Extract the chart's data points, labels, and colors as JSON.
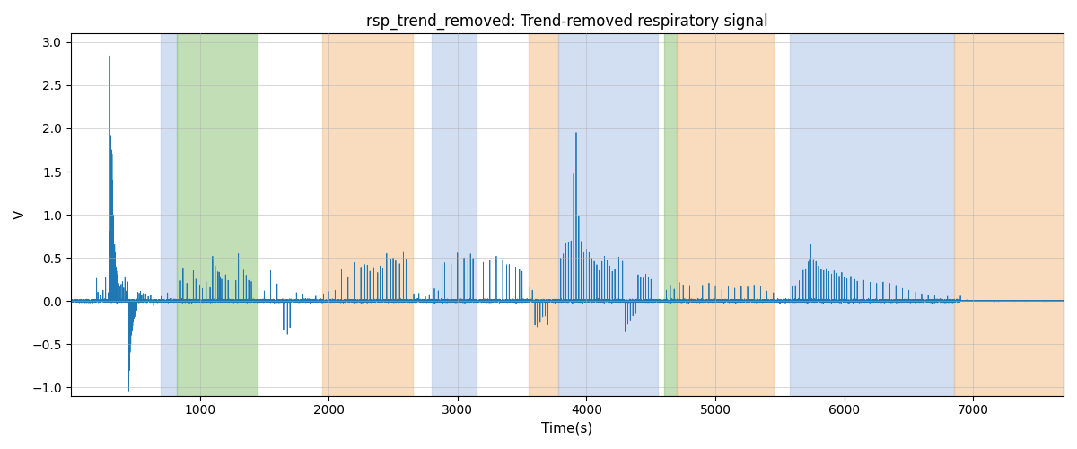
{
  "title": "rsp_trend_removed: Trend-removed respiratory signal",
  "xlabel": "Time(s)",
  "ylabel": "V",
  "xlim": [
    0,
    7700
  ],
  "ylim": [
    -1.1,
    3.1
  ],
  "yticks": [
    -1.0,
    -0.5,
    0.0,
    0.5,
    1.0,
    1.5,
    2.0,
    2.5,
    3.0
  ],
  "xticks": [
    1000,
    2000,
    3000,
    4000,
    5000,
    6000,
    7000
  ],
  "line_color": "#1f77b4",
  "line_width": 0.6,
  "bg_bands": [
    {
      "xmin": 700,
      "xmax": 820,
      "color": "#aec6e8",
      "alpha": 0.55
    },
    {
      "xmin": 820,
      "xmax": 1450,
      "color": "#90c47a",
      "alpha": 0.55
    },
    {
      "xmin": 1950,
      "xmax": 2650,
      "color": "#f5c08a",
      "alpha": 0.55
    },
    {
      "xmin": 2800,
      "xmax": 3150,
      "color": "#aec6e8",
      "alpha": 0.55
    },
    {
      "xmin": 3550,
      "xmax": 3780,
      "color": "#f5c08a",
      "alpha": 0.55
    },
    {
      "xmin": 3780,
      "xmax": 4550,
      "color": "#aec6e8",
      "alpha": 0.55
    },
    {
      "xmin": 4600,
      "xmax": 4700,
      "color": "#90c47a",
      "alpha": 0.55
    },
    {
      "xmin": 4700,
      "xmax": 5450,
      "color": "#f5c08a",
      "alpha": 0.55
    },
    {
      "xmin": 5580,
      "xmax": 6850,
      "color": "#aec6e8",
      "alpha": 0.55
    },
    {
      "xmin": 6850,
      "xmax": 7700,
      "color": "#f5c08a",
      "alpha": 0.55
    }
  ],
  "figsize": [
    12.0,
    5.0
  ],
  "dpi": 100,
  "grid_color": "#b0b0b0",
  "grid_alpha": 0.7
}
